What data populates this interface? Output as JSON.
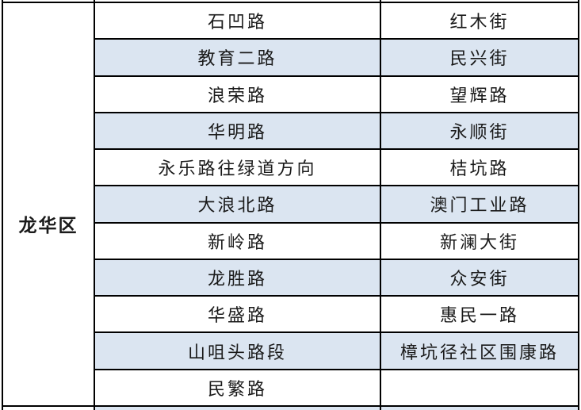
{
  "district_column": {
    "label": "龙华区"
  },
  "table": {
    "rows": [
      {
        "left": "石凹路",
        "right": "红木街"
      },
      {
        "left": "教育二路",
        "right": "民兴街"
      },
      {
        "left": "浪荣路",
        "right": "望辉路"
      },
      {
        "left": "华明路",
        "right": "永顺街"
      },
      {
        "left": "永乐路往绿道方向",
        "right": "桔坑路"
      },
      {
        "left": "大浪北路",
        "right": "澳门工业路"
      },
      {
        "left": "新岭路",
        "right": "新澜大街"
      },
      {
        "left": "龙胜路",
        "right": "众安街"
      },
      {
        "left": "华盛路",
        "right": "惠民一路"
      },
      {
        "left": "山咀头路段",
        "right": "樟坑径社区围康路"
      },
      {
        "left": "民繁路",
        "right": ""
      }
    ]
  },
  "colors": {
    "shaded_row": "#dbe5f1",
    "border": "#000000",
    "text": "#1a1a1a",
    "bg": "#ffffff"
  }
}
